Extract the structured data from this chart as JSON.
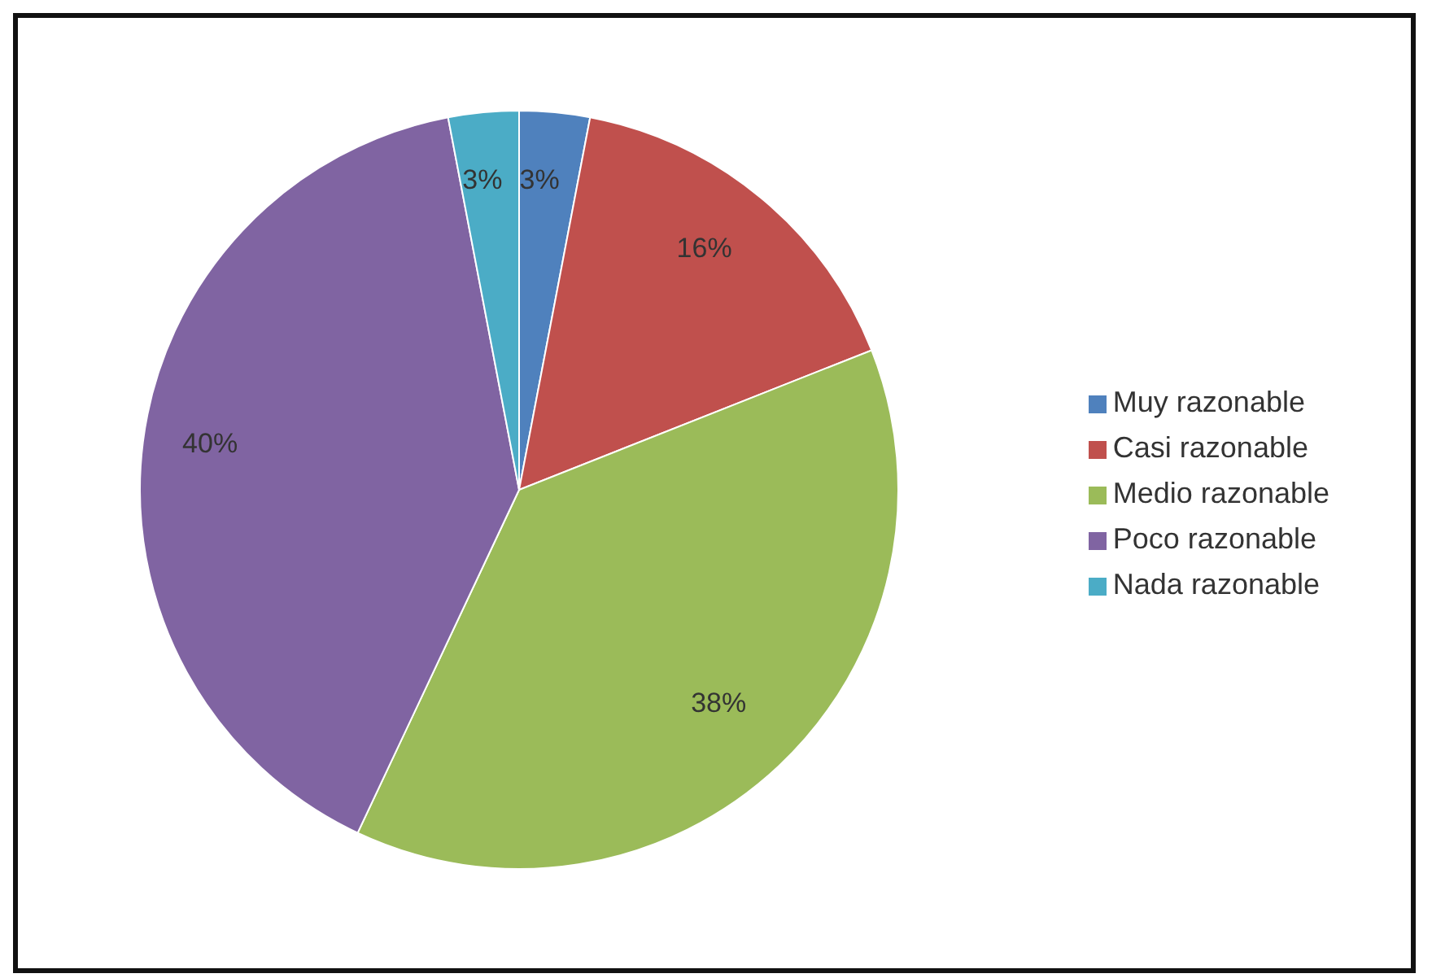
{
  "chart_data": {
    "type": "pie",
    "categories": [
      "Muy razonable",
      "Casi razonable",
      "Medio razonable",
      "Poco razonable",
      "Nada razonable"
    ],
    "values": [
      3,
      16,
      38,
      40,
      3
    ],
    "colors": [
      "#4f81bd",
      "#c0504d",
      "#9bbb59",
      "#8064a2",
      "#4bacc6"
    ],
    "value_labels": [
      "3%",
      "16%",
      "38%",
      "40%",
      "3%"
    ],
    "legend": "right"
  }
}
